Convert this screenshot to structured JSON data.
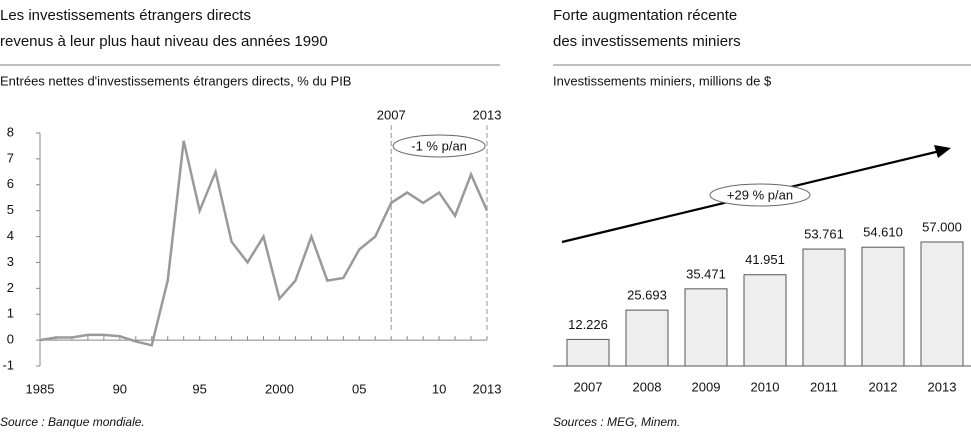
{
  "chart_data": [
    {
      "type": "line",
      "title": [
        "Les investissements étrangers directs",
        "revenus à leur plus haut niveau des années 1990"
      ],
      "subtitle": "Entrées nettes d'investissements étrangers directs, % du PIB",
      "source": "Source : Banque mondiale.",
      "x": [
        1985,
        1986,
        1987,
        1988,
        1989,
        1990,
        1991,
        1992,
        1993,
        1994,
        1995,
        1996,
        1997,
        1998,
        1999,
        2000,
        2001,
        2002,
        2003,
        2004,
        2005,
        2006,
        2007,
        2008,
        2009,
        2010,
        2011,
        2012,
        2013
      ],
      "values": [
        0,
        0.1,
        0.1,
        0.2,
        0.2,
        0.15,
        -0.05,
        -0.2,
        2.3,
        7.7,
        5.0,
        6.5,
        3.8,
        3.0,
        4.0,
        1.6,
        2.3,
        4.0,
        2.3,
        2.4,
        3.5,
        4.0,
        5.3,
        5.7,
        5.3,
        5.7,
        4.8,
        6.4,
        5.0
      ],
      "color": "#9a9a9a",
      "xlim": [
        1985,
        2013
      ],
      "xticks": [
        1985,
        {
          "value": 1990,
          "label": "90"
        },
        {
          "value": 1995,
          "label": "95"
        },
        2000,
        {
          "value": 2005,
          "label": "05"
        },
        {
          "value": 2010,
          "label": "10"
        },
        2013
      ],
      "ylim": [
        -1,
        8
      ],
      "yticks": [
        -1,
        0,
        1,
        2,
        3,
        4,
        5,
        6,
        7,
        8
      ],
      "highlight_years": [
        2007,
        2013
      ],
      "annotation": "-1 % p/an"
    },
    {
      "type": "bar",
      "title": [
        "Forte augmentation récente",
        "des investissements miniers"
      ],
      "subtitle": "Investissements miniers, millions de $",
      "source": "Sources : MEG, Minem.",
      "categories": [
        "2007",
        "2008",
        "2009",
        "2010",
        "2011",
        "2012",
        "2013"
      ],
      "values": [
        12226,
        25693,
        35471,
        41951,
        53761,
        54610,
        57000
      ],
      "value_labels": [
        "12.226",
        "25.693",
        "35.471",
        "41.951",
        "53.761",
        "54.610",
        "57.000"
      ],
      "color": "#eeeeee",
      "annotation": "+29 % p/an"
    }
  ]
}
